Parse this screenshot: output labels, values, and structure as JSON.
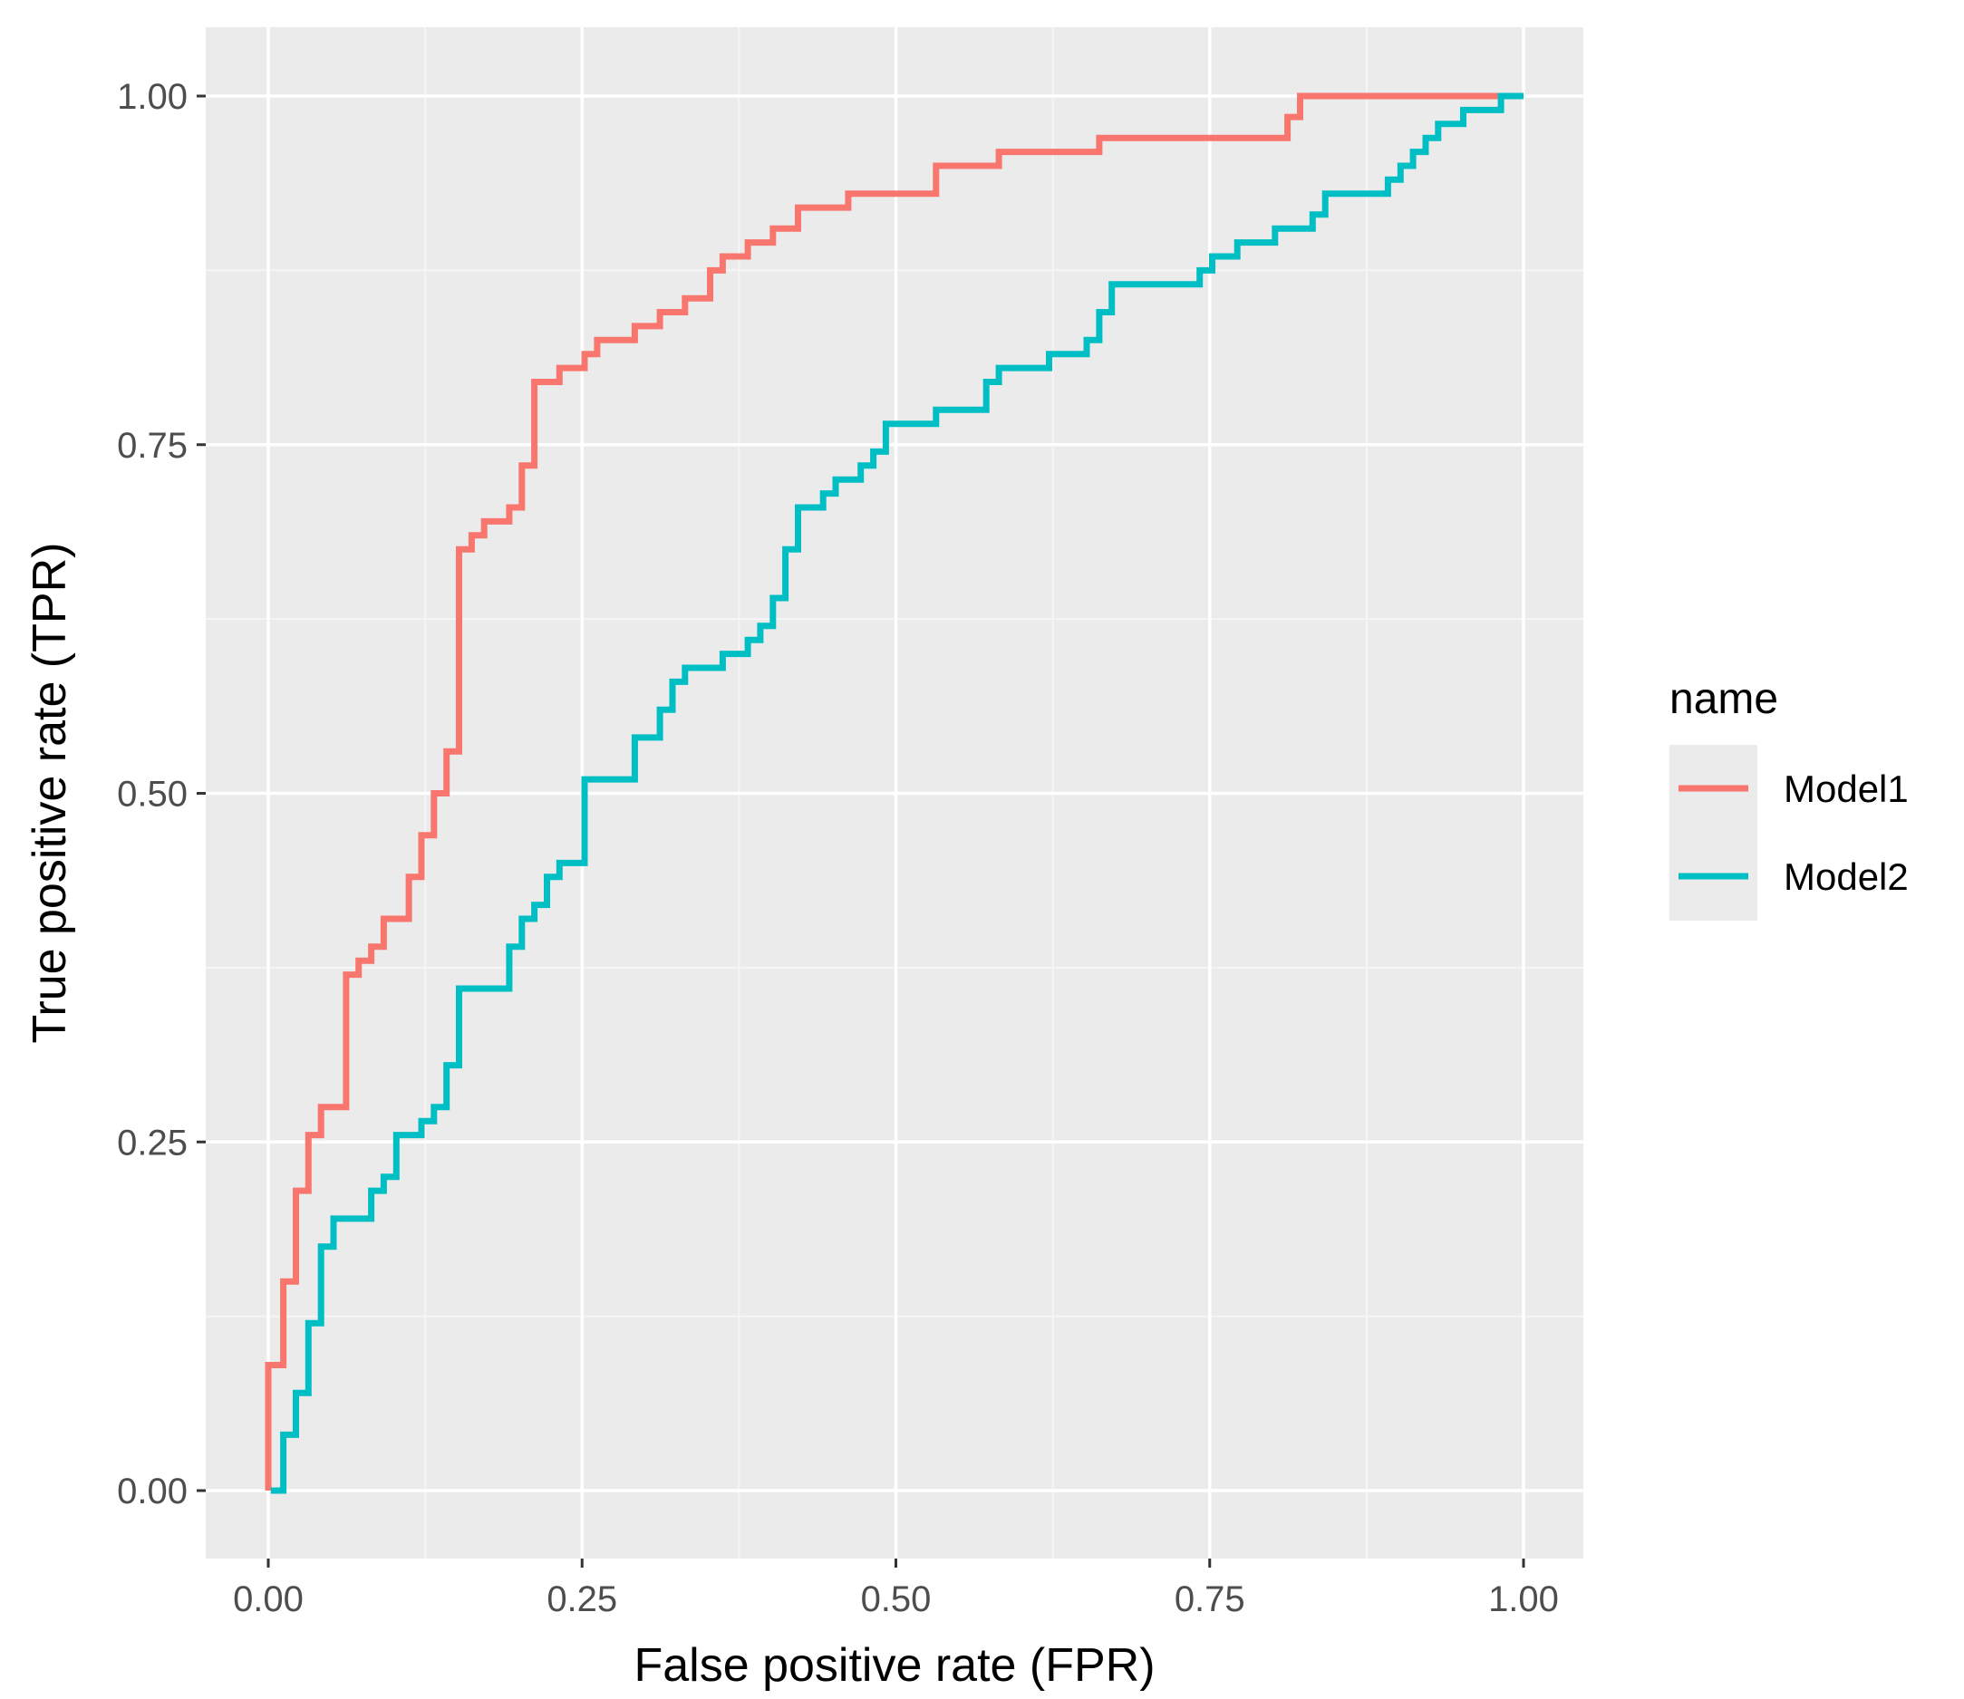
{
  "chart_data": {
    "type": "line",
    "title": "",
    "xlabel": "False positive rate (FPR)",
    "ylabel": "True positive rate (TPR)",
    "xlim": [
      0,
      1
    ],
    "ylim": [
      0,
      1
    ],
    "x_ticks": [
      "0.00",
      "0.25",
      "0.50",
      "0.75",
      "1.00"
    ],
    "y_ticks": [
      "0.00",
      "0.25",
      "0.50",
      "0.75",
      "1.00"
    ],
    "grid": true,
    "legend": {
      "title": "name",
      "position": "right",
      "items": [
        {
          "label": "Model1",
          "color": "#F8766D"
        },
        {
          "label": "Model2",
          "color": "#00BFC4"
        }
      ]
    },
    "colors": {
      "panel_background": "#EBEBEB",
      "grid_major": "#FFFFFF",
      "grid_minor": "#F5F5F5"
    },
    "series": [
      {
        "name": "Model1",
        "color": "#F8766D",
        "points": [
          [
            0.0,
            0.0
          ],
          [
            0.0,
            0.09
          ],
          [
            0.012,
            0.09
          ],
          [
            0.012,
            0.15
          ],
          [
            0.022,
            0.15
          ],
          [
            0.022,
            0.215
          ],
          [
            0.032,
            0.215
          ],
          [
            0.032,
            0.255
          ],
          [
            0.042,
            0.255
          ],
          [
            0.042,
            0.275
          ],
          [
            0.062,
            0.275
          ],
          [
            0.062,
            0.37
          ],
          [
            0.072,
            0.37
          ],
          [
            0.072,
            0.38
          ],
          [
            0.082,
            0.38
          ],
          [
            0.082,
            0.39
          ],
          [
            0.092,
            0.39
          ],
          [
            0.092,
            0.41
          ],
          [
            0.112,
            0.41
          ],
          [
            0.112,
            0.44
          ],
          [
            0.122,
            0.44
          ],
          [
            0.122,
            0.47
          ],
          [
            0.132,
            0.47
          ],
          [
            0.132,
            0.5
          ],
          [
            0.142,
            0.5
          ],
          [
            0.142,
            0.53
          ],
          [
            0.152,
            0.53
          ],
          [
            0.152,
            0.675
          ],
          [
            0.162,
            0.675
          ],
          [
            0.162,
            0.685
          ],
          [
            0.172,
            0.685
          ],
          [
            0.172,
            0.695
          ],
          [
            0.192,
            0.695
          ],
          [
            0.192,
            0.705
          ],
          [
            0.202,
            0.705
          ],
          [
            0.202,
            0.735
          ],
          [
            0.212,
            0.735
          ],
          [
            0.212,
            0.795
          ],
          [
            0.232,
            0.795
          ],
          [
            0.232,
            0.805
          ],
          [
            0.252,
            0.805
          ],
          [
            0.252,
            0.815
          ],
          [
            0.262,
            0.815
          ],
          [
            0.262,
            0.825
          ],
          [
            0.292,
            0.825
          ],
          [
            0.292,
            0.835
          ],
          [
            0.312,
            0.835
          ],
          [
            0.312,
            0.845
          ],
          [
            0.332,
            0.845
          ],
          [
            0.332,
            0.855
          ],
          [
            0.352,
            0.855
          ],
          [
            0.352,
            0.875
          ],
          [
            0.362,
            0.875
          ],
          [
            0.362,
            0.885
          ],
          [
            0.382,
            0.885
          ],
          [
            0.382,
            0.895
          ],
          [
            0.402,
            0.895
          ],
          [
            0.402,
            0.905
          ],
          [
            0.422,
            0.905
          ],
          [
            0.422,
            0.92
          ],
          [
            0.462,
            0.92
          ],
          [
            0.462,
            0.93
          ],
          [
            0.532,
            0.93
          ],
          [
            0.532,
            0.95
          ],
          [
            0.582,
            0.95
          ],
          [
            0.582,
            0.96
          ],
          [
            0.662,
            0.96
          ],
          [
            0.662,
            0.97
          ],
          [
            0.812,
            0.97
          ],
          [
            0.812,
            0.985
          ],
          [
            0.822,
            0.985
          ],
          [
            0.822,
            1.0
          ],
          [
            1.0,
            1.0
          ]
        ]
      },
      {
        "name": "Model2",
        "color": "#00BFC4",
        "points": [
          [
            0.002,
            0.0
          ],
          [
            0.012,
            0.0
          ],
          [
            0.012,
            0.04
          ],
          [
            0.022,
            0.04
          ],
          [
            0.022,
            0.07
          ],
          [
            0.032,
            0.07
          ],
          [
            0.032,
            0.12
          ],
          [
            0.042,
            0.12
          ],
          [
            0.042,
            0.175
          ],
          [
            0.052,
            0.175
          ],
          [
            0.052,
            0.195
          ],
          [
            0.082,
            0.195
          ],
          [
            0.082,
            0.215
          ],
          [
            0.092,
            0.215
          ],
          [
            0.092,
            0.225
          ],
          [
            0.102,
            0.225
          ],
          [
            0.102,
            0.255
          ],
          [
            0.122,
            0.255
          ],
          [
            0.122,
            0.265
          ],
          [
            0.132,
            0.265
          ],
          [
            0.132,
            0.275
          ],
          [
            0.142,
            0.275
          ],
          [
            0.142,
            0.305
          ],
          [
            0.152,
            0.305
          ],
          [
            0.152,
            0.36
          ],
          [
            0.192,
            0.36
          ],
          [
            0.192,
            0.39
          ],
          [
            0.202,
            0.39
          ],
          [
            0.202,
            0.41
          ],
          [
            0.212,
            0.41
          ],
          [
            0.212,
            0.42
          ],
          [
            0.222,
            0.42
          ],
          [
            0.222,
            0.44
          ],
          [
            0.232,
            0.44
          ],
          [
            0.232,
            0.45
          ],
          [
            0.252,
            0.45
          ],
          [
            0.252,
            0.51
          ],
          [
            0.292,
            0.51
          ],
          [
            0.292,
            0.54
          ],
          [
            0.312,
            0.54
          ],
          [
            0.312,
            0.56
          ],
          [
            0.322,
            0.56
          ],
          [
            0.322,
            0.58
          ],
          [
            0.332,
            0.58
          ],
          [
            0.332,
            0.59
          ],
          [
            0.362,
            0.59
          ],
          [
            0.362,
            0.6
          ],
          [
            0.382,
            0.6
          ],
          [
            0.382,
            0.61
          ],
          [
            0.392,
            0.61
          ],
          [
            0.392,
            0.62
          ],
          [
            0.402,
            0.62
          ],
          [
            0.402,
            0.64
          ],
          [
            0.412,
            0.64
          ],
          [
            0.412,
            0.675
          ],
          [
            0.422,
            0.675
          ],
          [
            0.422,
            0.705
          ],
          [
            0.442,
            0.705
          ],
          [
            0.442,
            0.715
          ],
          [
            0.452,
            0.715
          ],
          [
            0.452,
            0.725
          ],
          [
            0.472,
            0.725
          ],
          [
            0.472,
            0.735
          ],
          [
            0.482,
            0.735
          ],
          [
            0.482,
            0.745
          ],
          [
            0.492,
            0.745
          ],
          [
            0.492,
            0.765
          ],
          [
            0.532,
            0.765
          ],
          [
            0.532,
            0.775
          ],
          [
            0.572,
            0.775
          ],
          [
            0.572,
            0.795
          ],
          [
            0.582,
            0.795
          ],
          [
            0.582,
            0.805
          ],
          [
            0.622,
            0.805
          ],
          [
            0.622,
            0.815
          ],
          [
            0.652,
            0.815
          ],
          [
            0.652,
            0.825
          ],
          [
            0.662,
            0.825
          ],
          [
            0.662,
            0.845
          ],
          [
            0.672,
            0.845
          ],
          [
            0.672,
            0.865
          ],
          [
            0.742,
            0.865
          ],
          [
            0.742,
            0.875
          ],
          [
            0.752,
            0.875
          ],
          [
            0.752,
            0.885
          ],
          [
            0.772,
            0.885
          ],
          [
            0.772,
            0.895
          ],
          [
            0.802,
            0.895
          ],
          [
            0.802,
            0.905
          ],
          [
            0.832,
            0.905
          ],
          [
            0.832,
            0.915
          ],
          [
            0.842,
            0.915
          ],
          [
            0.842,
            0.93
          ],
          [
            0.892,
            0.93
          ],
          [
            0.892,
            0.94
          ],
          [
            0.902,
            0.94
          ],
          [
            0.902,
            0.95
          ],
          [
            0.912,
            0.95
          ],
          [
            0.912,
            0.96
          ],
          [
            0.922,
            0.96
          ],
          [
            0.922,
            0.97
          ],
          [
            0.932,
            0.97
          ],
          [
            0.932,
            0.98
          ],
          [
            0.952,
            0.98
          ],
          [
            0.952,
            0.99
          ],
          [
            0.982,
            0.99
          ],
          [
            0.982,
            1.0
          ],
          [
            1.0,
            1.0
          ]
        ]
      }
    ]
  }
}
